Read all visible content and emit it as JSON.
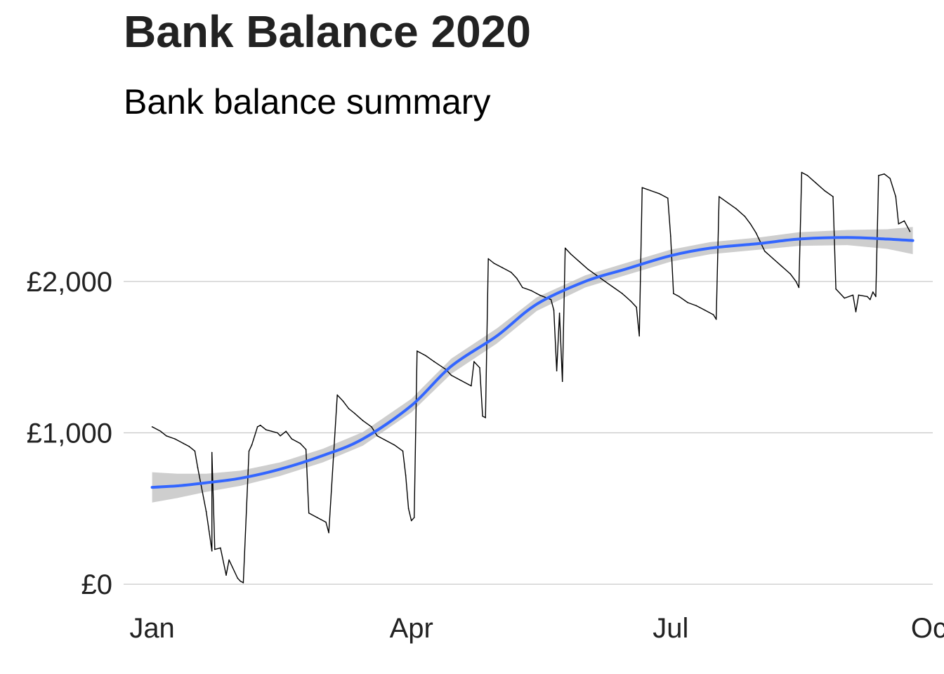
{
  "chart_data": {
    "type": "line",
    "title": "Bank Balance 2020",
    "subtitle": "Bank balance summary",
    "xlabel": "",
    "ylabel": "",
    "x_tick_labels": [
      {
        "date": "2020-01-01",
        "label": "Jan"
      },
      {
        "date": "2020-04-01",
        "label": "Apr"
      },
      {
        "date": "2020-07-01",
        "label": "Jul"
      },
      {
        "date": "2020-10-01",
        "label": "Oct"
      }
    ],
    "y_tick_labels": [
      {
        "value": 0,
        "label": "£0"
      },
      {
        "value": 1000,
        "label": "£1,000"
      },
      {
        "value": 2000,
        "label": "£2,000"
      }
    ],
    "xlim": [
      "2019-12-22",
      "2020-10-01"
    ],
    "ylim": [
      -120,
      2950
    ],
    "grid": "horizontal major lines",
    "legend": "none",
    "colors": {
      "balance": "#000000",
      "smooth": "#3366FF",
      "ribbon": "#BEBEBE",
      "grid": "#C8C8C8"
    },
    "series": [
      {
        "style": "daily-line",
        "points": [
          [
            "2020-01-01",
            1040
          ],
          [
            "2020-01-04",
            1010
          ],
          [
            "2020-01-06",
            980
          ],
          [
            "2020-01-09",
            960
          ],
          [
            "2020-01-12",
            930
          ],
          [
            "2020-01-14",
            910
          ],
          [
            "2020-01-16",
            880
          ],
          [
            "2020-01-17",
            770
          ],
          [
            "2020-01-20",
            480
          ],
          [
            "2020-01-21",
            350
          ],
          [
            "2020-01-22",
            220
          ],
          [
            "2020-01-22",
            870
          ],
          [
            "2020-01-23",
            230
          ],
          [
            "2020-01-25",
            240
          ],
          [
            "2020-01-27",
            60
          ],
          [
            "2020-01-28",
            160
          ],
          [
            "2020-01-31",
            40
          ],
          [
            "2020-02-01",
            20
          ],
          [
            "2020-02-02",
            10
          ],
          [
            "2020-02-04",
            880
          ],
          [
            "2020-02-05",
            920
          ],
          [
            "2020-02-06",
            980
          ],
          [
            "2020-02-07",
            1040
          ],
          [
            "2020-02-08",
            1050
          ],
          [
            "2020-02-10",
            1020
          ],
          [
            "2020-02-12",
            1010
          ],
          [
            "2020-02-14",
            1000
          ],
          [
            "2020-02-15",
            980
          ],
          [
            "2020-02-17",
            1010
          ],
          [
            "2020-02-19",
            960
          ],
          [
            "2020-02-22",
            930
          ],
          [
            "2020-02-24",
            890
          ],
          [
            "2020-02-25",
            470
          ],
          [
            "2020-02-28",
            440
          ],
          [
            "2020-03-02",
            410
          ],
          [
            "2020-03-03",
            340
          ],
          [
            "2020-03-06",
            1250
          ],
          [
            "2020-03-08",
            1210
          ],
          [
            "2020-03-10",
            1160
          ],
          [
            "2020-03-12",
            1130
          ],
          [
            "2020-03-15",
            1080
          ],
          [
            "2020-03-18",
            1040
          ],
          [
            "2020-03-20",
            980
          ],
          [
            "2020-03-23",
            950
          ],
          [
            "2020-03-26",
            920
          ],
          [
            "2020-03-29",
            880
          ],
          [
            "2020-03-30",
            720
          ],
          [
            "2020-03-31",
            500
          ],
          [
            "2020-04-01",
            420
          ],
          [
            "2020-04-02",
            440
          ],
          [
            "2020-04-03",
            1540
          ],
          [
            "2020-04-06",
            1510
          ],
          [
            "2020-04-09",
            1470
          ],
          [
            "2020-04-13",
            1420
          ],
          [
            "2020-04-15",
            1380
          ],
          [
            "2020-04-18",
            1350
          ],
          [
            "2020-04-21",
            1320
          ],
          [
            "2020-04-22",
            1310
          ],
          [
            "2020-04-23",
            1470
          ],
          [
            "2020-04-25",
            1430
          ],
          [
            "2020-04-26",
            1110
          ],
          [
            "2020-04-27",
            1100
          ],
          [
            "2020-04-28",
            2150
          ],
          [
            "2020-04-30",
            2120
          ],
          [
            "2020-05-03",
            2090
          ],
          [
            "2020-05-06",
            2060
          ],
          [
            "2020-05-08",
            2020
          ],
          [
            "2020-05-10",
            1960
          ],
          [
            "2020-05-13",
            1940
          ],
          [
            "2020-05-16",
            1910
          ],
          [
            "2020-05-20",
            1880
          ],
          [
            "2020-05-21",
            1810
          ],
          [
            "2020-05-22",
            1410
          ],
          [
            "2020-05-23",
            1790
          ],
          [
            "2020-05-24",
            1340
          ],
          [
            "2020-05-25",
            2220
          ],
          [
            "2020-05-27",
            2180
          ],
          [
            "2020-05-30",
            2130
          ],
          [
            "2020-06-02",
            2080
          ],
          [
            "2020-06-05",
            2040
          ],
          [
            "2020-06-08",
            2000
          ],
          [
            "2020-06-11",
            1960
          ],
          [
            "2020-06-14",
            1920
          ],
          [
            "2020-06-17",
            1870
          ],
          [
            "2020-06-19",
            1830
          ],
          [
            "2020-06-20",
            1640
          ],
          [
            "2020-06-21",
            2620
          ],
          [
            "2020-06-24",
            2600
          ],
          [
            "2020-06-27",
            2580
          ],
          [
            "2020-06-30",
            2550
          ],
          [
            "2020-07-01",
            2300
          ],
          [
            "2020-07-02",
            1920
          ],
          [
            "2020-07-04",
            1900
          ],
          [
            "2020-07-07",
            1860
          ],
          [
            "2020-07-10",
            1840
          ],
          [
            "2020-07-13",
            1810
          ],
          [
            "2020-07-16",
            1780
          ],
          [
            "2020-07-17",
            1750
          ],
          [
            "2020-07-18",
            2560
          ],
          [
            "2020-07-21",
            2520
          ],
          [
            "2020-07-24",
            2480
          ],
          [
            "2020-07-27",
            2430
          ],
          [
            "2020-07-29",
            2380
          ],
          [
            "2020-07-31",
            2320
          ],
          [
            "2020-08-03",
            2200
          ],
          [
            "2020-08-06",
            2150
          ],
          [
            "2020-08-09",
            2100
          ],
          [
            "2020-08-12",
            2050
          ],
          [
            "2020-08-14",
            2000
          ],
          [
            "2020-08-15",
            1960
          ],
          [
            "2020-08-16",
            2720
          ],
          [
            "2020-08-18",
            2700
          ],
          [
            "2020-08-21",
            2650
          ],
          [
            "2020-08-24",
            2600
          ],
          [
            "2020-08-27",
            2560
          ],
          [
            "2020-08-28",
            1950
          ],
          [
            "2020-08-31",
            1890
          ],
          [
            "2020-09-03",
            1910
          ],
          [
            "2020-09-04",
            1800
          ],
          [
            "2020-09-05",
            1910
          ],
          [
            "2020-09-08",
            1900
          ],
          [
            "2020-09-09",
            1880
          ],
          [
            "2020-09-10",
            1930
          ],
          [
            "2020-09-11",
            1900
          ],
          [
            "2020-09-12",
            2700
          ],
          [
            "2020-09-14",
            2710
          ],
          [
            "2020-09-16",
            2680
          ],
          [
            "2020-09-18",
            2560
          ],
          [
            "2020-09-19",
            2380
          ],
          [
            "2020-09-21",
            2400
          ],
          [
            "2020-09-23",
            2330
          ]
        ]
      },
      {
        "style": "smooth-trend",
        "points": [
          [
            "2020-01-01",
            640
          ],
          [
            "2020-01-10",
            650
          ],
          [
            "2020-01-20",
            670
          ],
          [
            "2020-02-01",
            700
          ],
          [
            "2020-02-15",
            760
          ],
          [
            "2020-03-01",
            850
          ],
          [
            "2020-03-15",
            960
          ],
          [
            "2020-04-01",
            1180
          ],
          [
            "2020-04-15",
            1440
          ],
          [
            "2020-05-01",
            1640
          ],
          [
            "2020-05-15",
            1850
          ],
          [
            "2020-06-01",
            2000
          ],
          [
            "2020-06-15",
            2080
          ],
          [
            "2020-07-01",
            2170
          ],
          [
            "2020-07-15",
            2220
          ],
          [
            "2020-08-01",
            2250
          ],
          [
            "2020-08-15",
            2280
          ],
          [
            "2020-09-01",
            2290
          ],
          [
            "2020-09-15",
            2280
          ],
          [
            "2020-09-24",
            2270
          ]
        ],
        "ci_halfwidth": [
          100,
          80,
          60,
          50,
          45,
          45,
          45,
          45,
          50,
          50,
          45,
          40,
          40,
          40,
          40,
          40,
          45,
          50,
          65,
          90
        ]
      }
    ]
  }
}
